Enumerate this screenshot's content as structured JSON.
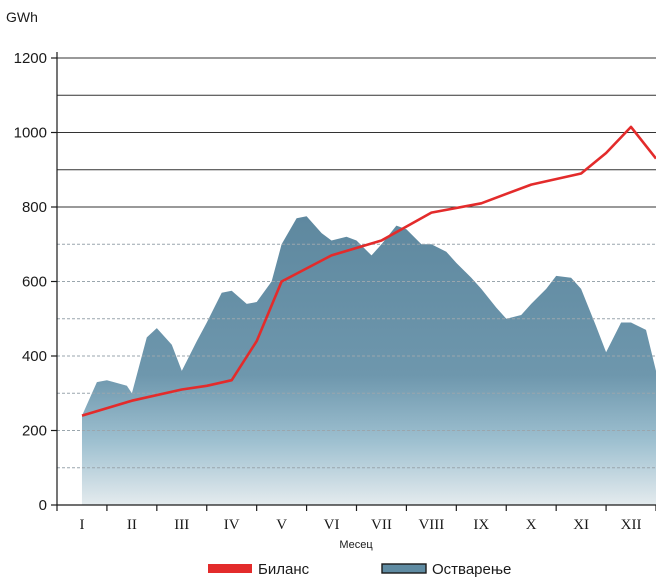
{
  "chart_data": {
    "type": "area",
    "unit": "GWh",
    "xlabel": "Месец",
    "ylim": [
      0,
      1200
    ],
    "yticks": [
      0,
      200,
      400,
      600,
      800,
      1000,
      1200
    ],
    "categories": [
      "I",
      "II",
      "III",
      "IV",
      "V",
      "VI",
      "VII",
      "VIII",
      "IX",
      "X",
      "XI",
      "XII"
    ],
    "grid": "horizontal",
    "legend_position": "bottom",
    "series": [
      {
        "name": "Биланс",
        "kind": "line",
        "color": "#e32b2b",
        "x": [
          0.5,
          1.5,
          2.5,
          3.0,
          3.5,
          4.0,
          4.5,
          5.5,
          6.5,
          7.5,
          8.5,
          9.5,
          10.5,
          11.0,
          11.5,
          12.0
        ],
        "y": [
          240,
          280,
          310,
          320,
          335,
          440,
          600,
          670,
          710,
          785,
          810,
          860,
          890,
          945,
          1015,
          930
        ]
      },
      {
        "name": "Остварење",
        "kind": "area",
        "color": "#5f8ba2",
        "x": [
          0.5,
          0.8,
          1.0,
          1.4,
          1.5,
          1.8,
          2.0,
          2.3,
          2.5,
          2.8,
          3.0,
          3.3,
          3.5,
          3.8,
          4.0,
          4.3,
          4.5,
          4.8,
          5.0,
          5.3,
          5.5,
          5.8,
          6.0,
          6.3,
          6.5,
          6.8,
          7.0,
          7.3,
          7.5,
          7.8,
          8.0,
          8.3,
          8.5,
          8.8,
          9.0,
          9.3,
          9.5,
          9.8,
          10.0,
          10.3,
          10.5,
          10.8,
          11.0,
          11.3,
          11.5,
          11.8,
          12.0
        ],
        "y": [
          240,
          330,
          335,
          320,
          300,
          450,
          475,
          430,
          360,
          440,
          490,
          570,
          575,
          540,
          545,
          600,
          700,
          770,
          775,
          730,
          710,
          720,
          710,
          670,
          700,
          750,
          740,
          700,
          700,
          680,
          650,
          610,
          580,
          530,
          500,
          510,
          540,
          580,
          615,
          610,
          580,
          480,
          410,
          490,
          490,
          470,
          360
        ]
      }
    ]
  }
}
